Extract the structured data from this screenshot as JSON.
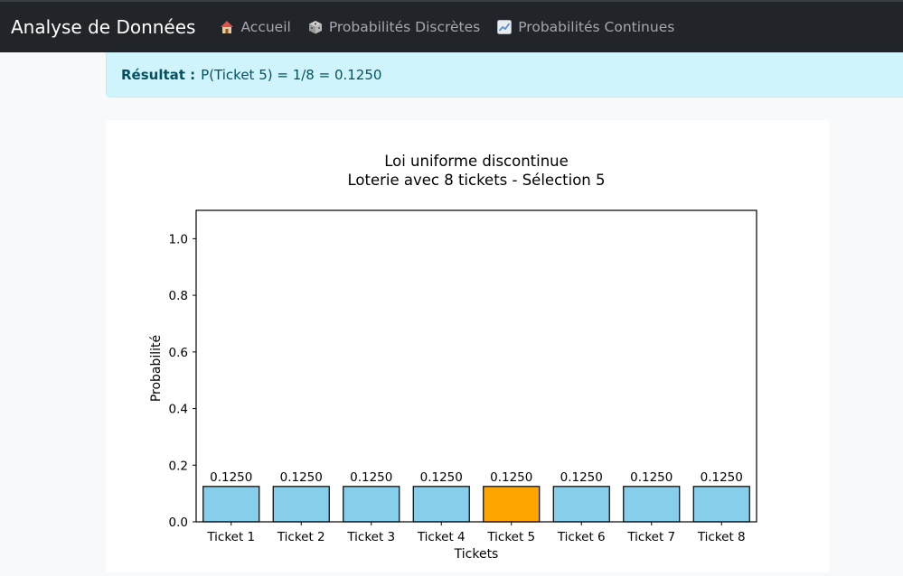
{
  "navbar": {
    "brand": "Analyse de Données",
    "items": [
      {
        "label": "Accueil",
        "icon": "house-icon"
      },
      {
        "label": "Probabilités Discrètes",
        "icon": "die-icon"
      },
      {
        "label": "Probabilités Continues",
        "icon": "chart-increasing-icon"
      }
    ]
  },
  "alert": {
    "label": "Résultat :",
    "text": "P(Ticket 5) = 1/8 = 0.1250"
  },
  "colors": {
    "bar": "#87ceeb",
    "highlight": "#ffa500"
  },
  "chart_data": {
    "type": "bar",
    "title": "Loi uniforme discontinue",
    "subtitle": "Loterie avec 8 tickets - Sélection 5",
    "xlabel": "Tickets",
    "ylabel": "Probabilité",
    "ylim": [
      0,
      1.1
    ],
    "yticks": [
      "0.0",
      "0.2",
      "0.4",
      "0.6",
      "0.8",
      "1.0"
    ],
    "categories": [
      "Ticket 1",
      "Ticket 2",
      "Ticket 3",
      "Ticket 4",
      "Ticket 5",
      "Ticket 6",
      "Ticket 7",
      "Ticket 8"
    ],
    "values": [
      0.125,
      0.125,
      0.125,
      0.125,
      0.125,
      0.125,
      0.125,
      0.125
    ],
    "value_labels": [
      "0.1250",
      "0.1250",
      "0.1250",
      "0.1250",
      "0.1250",
      "0.1250",
      "0.1250",
      "0.1250"
    ],
    "highlight_index": 4,
    "grid": false
  }
}
